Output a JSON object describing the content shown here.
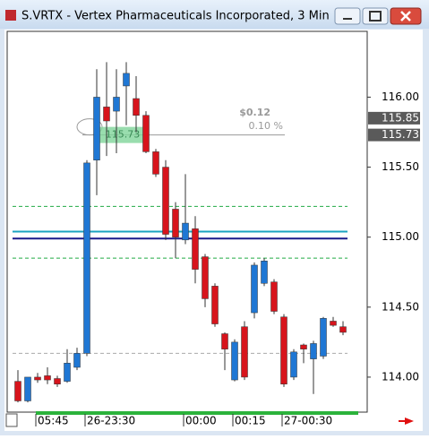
{
  "chart_data": {
    "type": "candlestick",
    "title": "S.VRTX - Vertex Pharmaceuticals Incorporated, 3 Min",
    "categories": [
      null,
      null,
      "05:45",
      null,
      null,
      null,
      null,
      "26-23:30",
      null,
      null,
      null,
      null,
      null,
      null,
      null,
      null,
      null,
      "00:00",
      null,
      null,
      null,
      null,
      "00:15",
      null,
      null,
      null,
      null,
      "27-00:30",
      null,
      null,
      null,
      null,
      null,
      null
    ],
    "series": [
      {
        "name": "open",
        "values": [
          113.97,
          113.83,
          114.0,
          114.01,
          113.99,
          113.97,
          114.07,
          114.17,
          115.55,
          115.93,
          115.9,
          116.08,
          115.99,
          115.87,
          115.61,
          115.5,
          115.2,
          114.98,
          115.06,
          114.86,
          114.65,
          114.31,
          113.98,
          114.36,
          114.46,
          114.67,
          114.68,
          114.43,
          114.0,
          114.23,
          114.13,
          114.15,
          114.4,
          114.36
        ]
      },
      {
        "name": "high",
        "values": [
          114.05,
          114.0,
          114.03,
          114.07,
          114.01,
          114.2,
          114.21,
          115.55,
          116.2,
          116.25,
          116.2,
          116.25,
          116.15,
          115.9,
          115.63,
          115.55,
          115.25,
          115.45,
          115.15,
          114.88,
          114.67,
          114.32,
          114.27,
          114.4,
          114.82,
          114.85,
          114.7,
          114.45,
          114.2,
          114.24,
          114.26,
          114.43,
          114.43,
          114.4
        ]
      },
      {
        "name": "low",
        "values": [
          113.82,
          113.82,
          113.96,
          113.95,
          113.93,
          113.96,
          114.05,
          114.15,
          115.3,
          115.58,
          115.6,
          115.8,
          115.75,
          115.6,
          115.43,
          114.98,
          114.85,
          114.95,
          114.67,
          114.5,
          114.36,
          114.05,
          113.97,
          113.98,
          114.42,
          114.65,
          114.45,
          113.93,
          113.98,
          114.1,
          113.88,
          114.13,
          114.36,
          114.3
        ]
      },
      {
        "name": "close",
        "values": [
          113.83,
          114.0,
          113.98,
          113.98,
          113.95,
          114.1,
          114.17,
          115.53,
          116.0,
          115.83,
          116.0,
          116.17,
          115.87,
          115.61,
          115.45,
          115.02,
          115.0,
          115.1,
          114.77,
          114.56,
          114.38,
          114.2,
          114.25,
          114.0,
          114.8,
          114.83,
          114.47,
          113.95,
          114.18,
          114.2,
          114.24,
          114.42,
          114.37,
          114.32
        ]
      }
    ],
    "up_color": "#1f77d4",
    "down_color": "#d7141c",
    "ylim": [
      113.75,
      116.47
    ],
    "yticks": [
      {
        "value": 114,
        "label": "114.00"
      },
      {
        "value": 114.5,
        "label": "114.50"
      },
      {
        "value": 115,
        "label": "115.00"
      },
      {
        "value": 115.5,
        "label": "115.50"
      },
      {
        "value": 116,
        "label": "116.00"
      }
    ],
    "hlines": [
      {
        "value": 115.22,
        "color": "#22aa44",
        "style": "dashed"
      },
      {
        "value": 114.85,
        "color": "#22aa44",
        "style": "dashed"
      },
      {
        "value": 115.04,
        "color": "#1ba3c0",
        "style": "solid"
      },
      {
        "value": 114.99,
        "color": "#1a1a8c",
        "style": "solid"
      },
      {
        "value": 114.17,
        "color": "#aaaaaa",
        "style": "dashed"
      }
    ],
    "price_tags": [
      115.85,
      115.73
    ],
    "cursor_price": {
      "value": 115.73,
      "label": "115.73"
    },
    "annotations": [
      "$0.12",
      "0.10 %"
    ]
  }
}
